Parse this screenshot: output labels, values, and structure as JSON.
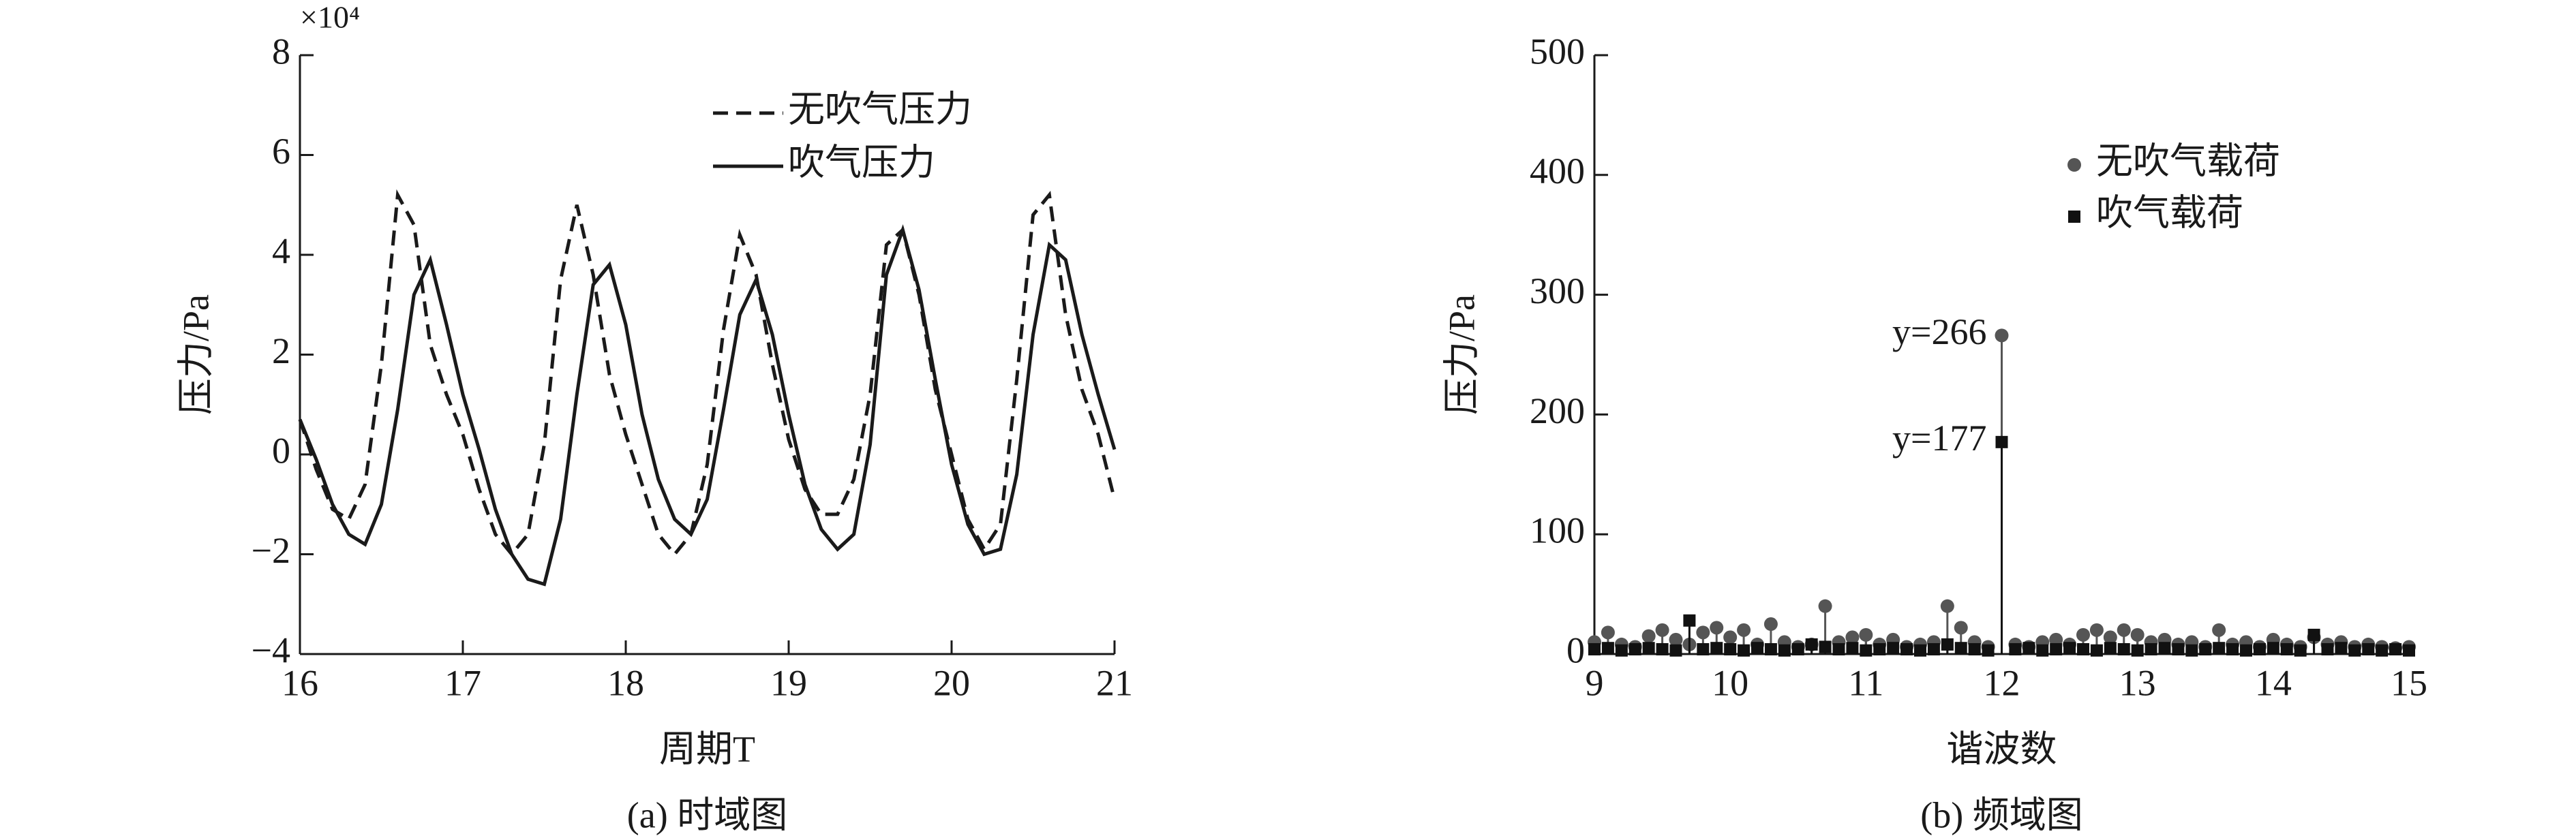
{
  "chart_data": [
    {
      "type": "line",
      "caption": "(a) 时域图",
      "x_label": "周期T",
      "y_label": "压力/Pa",
      "y_multiplier": "×10⁴",
      "xlim": [
        16,
        21
      ],
      "ylim": [
        -4,
        8
      ],
      "xticks": [
        16,
        17,
        18,
        19,
        20,
        21
      ],
      "yticks": [
        {
          "value": -4,
          "label": "−4"
        },
        {
          "value": -2,
          "label": "−2"
        },
        0,
        2,
        4,
        6,
        8
      ],
      "legend": "upper right",
      "x": [
        16.0,
        16.1,
        16.2,
        16.3,
        16.4,
        16.5,
        16.6,
        16.7,
        16.8,
        16.9,
        17.0,
        17.1,
        17.2,
        17.3,
        17.4,
        17.5,
        17.6,
        17.7,
        17.8,
        17.9,
        18.0,
        18.1,
        18.2,
        18.3,
        18.4,
        18.5,
        18.6,
        18.7,
        18.8,
        18.9,
        19.0,
        19.1,
        19.2,
        19.3,
        19.4,
        19.5,
        19.6,
        19.7,
        19.8,
        19.9,
        20.0,
        20.1,
        20.2,
        20.3,
        20.4,
        20.5,
        20.6,
        20.7,
        20.8,
        20.9,
        21.0
      ],
      "series": [
        {
          "name": "无吹气压力",
          "color": "#1a1a1a",
          "line_style": "dashed",
          "values": [
            0.7,
            -0.3,
            -1.1,
            -1.3,
            -0.6,
            1.8,
            5.2,
            4.6,
            2.2,
            1.2,
            0.4,
            -0.7,
            -1.6,
            -2.0,
            -1.6,
            0.2,
            3.5,
            5.0,
            3.6,
            1.6,
            0.4,
            -0.6,
            -1.6,
            -2.0,
            -1.6,
            -0.2,
            2.5,
            4.4,
            3.6,
            1.8,
            0.3,
            -0.7,
            -1.2,
            -1.2,
            -0.5,
            1.2,
            4.2,
            4.5,
            3.2,
            1.3,
            0.0,
            -1.3,
            -1.9,
            -1.4,
            1.5,
            4.8,
            5.2,
            2.8,
            1.3,
            0.4,
            -0.9
          ]
        },
        {
          "name": "吹气压力",
          "color": "#1a1a1a",
          "line_style": "solid",
          "values": [
            0.7,
            -0.1,
            -1.0,
            -1.6,
            -1.8,
            -1.0,
            0.9,
            3.2,
            3.9,
            2.6,
            1.2,
            0.1,
            -1.1,
            -2.0,
            -2.5,
            -2.6,
            -1.3,
            1.2,
            3.4,
            3.8,
            2.6,
            0.8,
            -0.5,
            -1.3,
            -1.6,
            -0.9,
            0.9,
            2.8,
            3.5,
            2.4,
            0.8,
            -0.6,
            -1.5,
            -1.9,
            -1.6,
            0.2,
            3.6,
            4.5,
            3.3,
            1.5,
            -0.2,
            -1.4,
            -2.0,
            -1.9,
            -0.4,
            2.4,
            4.2,
            3.9,
            2.4,
            1.2,
            0.1
          ]
        }
      ]
    },
    {
      "type": "stem",
      "caption": "(b) 频域图",
      "x_label": "谐波数",
      "y_label": "压力/Pa",
      "xlim": [
        9,
        15
      ],
      "ylim": [
        0,
        500
      ],
      "xticks": [
        9,
        10,
        11,
        12,
        13,
        14,
        15
      ],
      "yticks": [
        0,
        100,
        200,
        300,
        400,
        500
      ],
      "legend": "upper right",
      "x": [
        9.0,
        9.1,
        9.2,
        9.3,
        9.4,
        9.5,
        9.6,
        9.7,
        9.8,
        9.9,
        10.0,
        10.1,
        10.2,
        10.3,
        10.4,
        10.5,
        10.6,
        10.7,
        10.8,
        10.9,
        11.0,
        11.1,
        11.2,
        11.3,
        11.4,
        11.5,
        11.6,
        11.7,
        11.8,
        11.9,
        12.0,
        12.1,
        12.2,
        12.3,
        12.4,
        12.5,
        12.6,
        12.7,
        12.8,
        12.9,
        13.0,
        13.1,
        13.2,
        13.3,
        13.4,
        13.5,
        13.6,
        13.7,
        13.8,
        13.9,
        14.0,
        14.1,
        14.2,
        14.3,
        14.4,
        14.5,
        14.6,
        14.7,
        14.8,
        14.9,
        15.0
      ],
      "series": [
        {
          "name": "无吹气载荷",
          "color": "#555555",
          "marker": "circle",
          "values": [
            10,
            18,
            8,
            6,
            15,
            20,
            12,
            8,
            18,
            22,
            14,
            20,
            8,
            25,
            10,
            6,
            8,
            40,
            10,
            14,
            16,
            8,
            12,
            6,
            8,
            10,
            40,
            22,
            10,
            6,
            266,
            8,
            6,
            10,
            12,
            8,
            16,
            20,
            14,
            20,
            16,
            10,
            12,
            8,
            10,
            6,
            20,
            8,
            10,
            6,
            12,
            8,
            6,
            14,
            8,
            10,
            6,
            8,
            6,
            5,
            6
          ],
          "value_labels": [
            null,
            null,
            null,
            null,
            null,
            null,
            null,
            null,
            null,
            null,
            null,
            null,
            null,
            null,
            null,
            null,
            null,
            null,
            null,
            null,
            null,
            null,
            null,
            null,
            null,
            null,
            null,
            null,
            null,
            null,
            "y=266",
            null,
            null,
            null,
            null,
            null,
            null,
            null,
            null,
            null,
            null,
            null,
            null,
            null,
            null,
            null,
            null,
            null,
            null,
            null,
            null,
            null,
            null,
            null,
            null,
            null,
            null,
            null,
            null,
            null,
            null
          ]
        },
        {
          "name": "吹气载荷",
          "color": "#111111",
          "marker": "square",
          "values": [
            4,
            5,
            3,
            4,
            5,
            4,
            3,
            28,
            4,
            5,
            4,
            3,
            5,
            4,
            3,
            4,
            8,
            6,
            4,
            5,
            3,
            4,
            5,
            4,
            3,
            4,
            8,
            5,
            4,
            3,
            177,
            4,
            5,
            3,
            4,
            5,
            4,
            3,
            5,
            4,
            3,
            4,
            5,
            4,
            3,
            4,
            5,
            4,
            3,
            4,
            5,
            4,
            3,
            16,
            4,
            5,
            3,
            4,
            3,
            4,
            3
          ],
          "value_labels": [
            null,
            null,
            null,
            null,
            null,
            null,
            null,
            null,
            null,
            null,
            null,
            null,
            null,
            null,
            null,
            null,
            null,
            null,
            null,
            null,
            null,
            null,
            null,
            null,
            null,
            null,
            null,
            null,
            null,
            null,
            "y=177",
            null,
            null,
            null,
            null,
            null,
            null,
            null,
            null,
            null,
            null,
            null,
            null,
            null,
            null,
            null,
            null,
            null,
            null,
            null,
            null,
            null,
            null,
            null,
            null,
            null,
            null,
            null,
            null,
            null,
            null
          ]
        }
      ]
    }
  ]
}
